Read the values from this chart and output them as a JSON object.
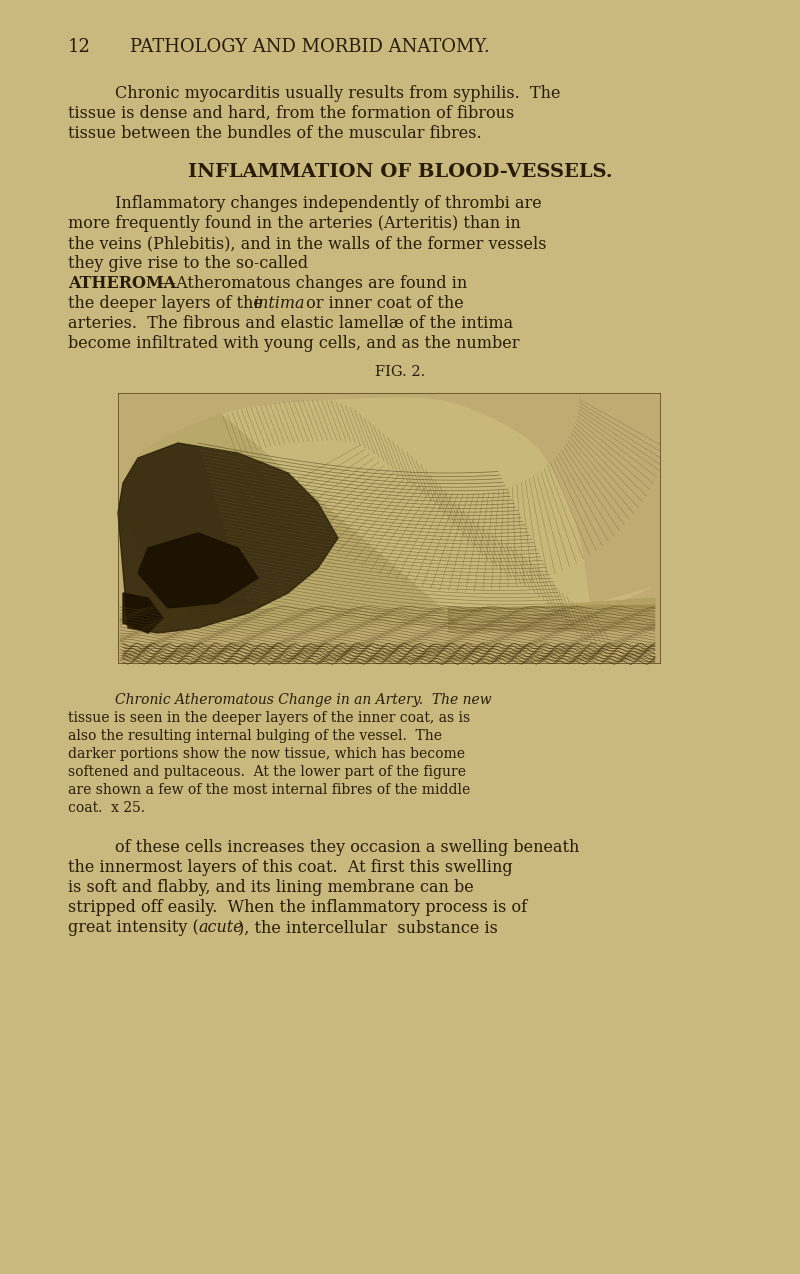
{
  "bg_color": "#c9b97f",
  "page_width": 8.0,
  "page_height": 12.74,
  "dpi": 100,
  "text_color": "#2a1a05",
  "header_num": "12",
  "header_text": "PATHOLOGY AND MORBID ANATOMY.",
  "p1": [
    "Chronic myocarditis usually results from syphilis.  The",
    "tissue is dense and hard, from the formation of fibrous",
    "tissue between the bundles of the muscular fibres."
  ],
  "section": "INFLAMMATION OF BLOOD-VESSELS.",
  "p2": [
    "Inflammatory changes independently of thrombi are",
    "more frequently found in the arteries (Arteritis) than in",
    "the veins (Phlebitis), and in the walls of the former vessels",
    "they give rise to the so-called"
  ],
  "atheroma_word": "ATHEROMA",
  "atheroma_rest": "—Atheromatous changes are found in",
  "p3": [
    "the deeper layers of the intima or inner coat of the",
    "arteries.  The fibrous and elastic lamellæ of the intima",
    "become infiltrated with young cells, and as the number"
  ],
  "fig_label": "FIG. 2.",
  "cap_italic": "Chronic Atheromatous Change in an Artery.",
  "cap_rest": "  The new tissue is seen in the deeper layers of the inner coat, as is also the resulting internal bulging of the vessel.  The darker portions show the now tissue, which has become softened and pultaceous.  At the lower part of the figure are shown a few of the most internal fibres of the middle coat.  x 25.",
  "p4": [
    "of these cells increases they occasion a swelling beneath",
    "the innermost layers of this coat.  At first this swelling",
    "is soft and flabby, and its lining membrane can be",
    "stripped off easily.  When the inflammatory process is of",
    "great intensity (acute), the intercellular substance is"
  ]
}
